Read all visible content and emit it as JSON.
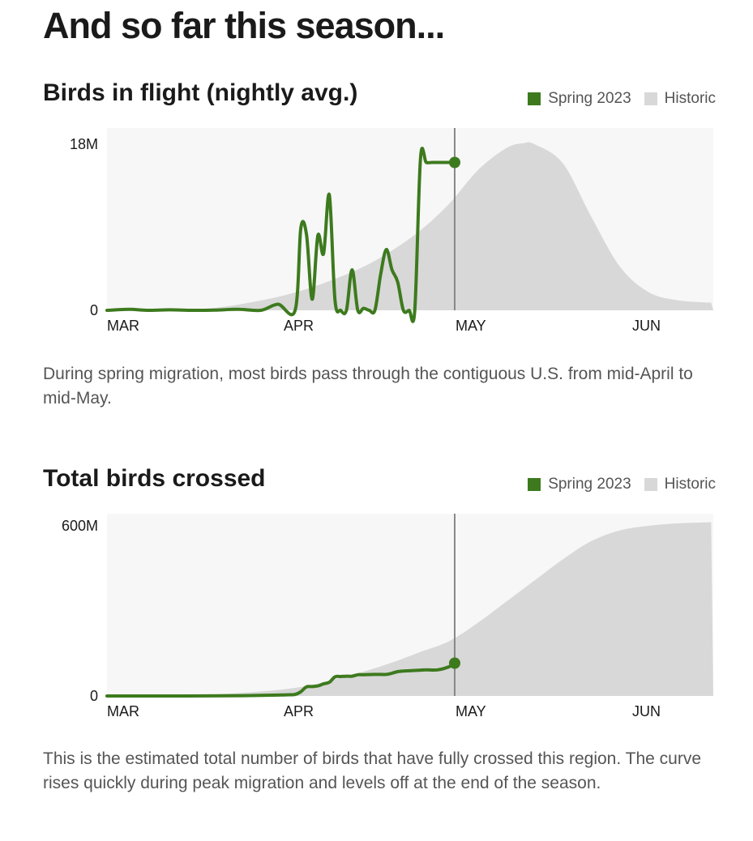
{
  "heading": "And so far this season...",
  "colors": {
    "spring": "#3d7a1e",
    "historic": "#d8d8d8",
    "plot_bg": "#f7f7f7",
    "marker": "#888888"
  },
  "charts": [
    {
      "title": "Birds in flight (nightly avg.)",
      "legend": [
        "Spring 2023",
        "Historic"
      ],
      "caption": "During spring migration, most birds pass through the contiguous U.S. from mid-April to mid-May."
    },
    {
      "title": "Total birds crossed",
      "legend": [
        "Spring 2023",
        "Historic"
      ],
      "caption": "This is the estimated total number of birds that have fully crossed this region. The curve rises quickly during peak migration and levels off at the end of the season."
    }
  ],
  "chart_data": [
    {
      "type": "line",
      "title": "Birds in flight (nightly avg.)",
      "y_unit": "birds",
      "ylim": [
        0,
        18000000
      ],
      "y_ticks": [
        "18M",
        "0"
      ],
      "x_ticks": [
        "MAR",
        "APR",
        "MAY",
        "JUN"
      ],
      "current_marker": "2023-05-01",
      "series": [
        {
          "name": "Historic",
          "type": "area",
          "x": [
            "2023-03-01",
            "2023-03-10",
            "2023-03-20",
            "2023-03-30",
            "2023-04-05",
            "2023-04-10",
            "2023-04-15",
            "2023-04-20",
            "2023-04-25",
            "2023-04-30",
            "2023-05-05",
            "2023-05-10",
            "2023-05-13",
            "2023-05-15",
            "2023-05-20",
            "2023-05-25",
            "2023-05-30",
            "2023-06-04",
            "2023-06-09",
            "2023-06-15"
          ],
          "y": [
            0,
            50000,
            250000,
            1200000,
            2100000,
            3100000,
            4300000,
            5900000,
            7900000,
            10500000,
            13800000,
            16000000,
            16500000,
            16400000,
            14500000,
            9200000,
            4300000,
            1800000,
            1000000,
            750000
          ]
        },
        {
          "name": "Spring 2023",
          "type": "line",
          "x": [
            "2023-03-01",
            "2023-03-05",
            "2023-03-08",
            "2023-03-12",
            "2023-03-16",
            "2023-03-20",
            "2023-03-24",
            "2023-03-28",
            "2023-03-31",
            "2023-04-03",
            "2023-04-04",
            "2023-04-05",
            "2023-04-06",
            "2023-04-07",
            "2023-04-08",
            "2023-04-09",
            "2023-04-10",
            "2023-04-11",
            "2023-04-12",
            "2023-04-13",
            "2023-04-14",
            "2023-04-15",
            "2023-04-16",
            "2023-04-17",
            "2023-04-18",
            "2023-04-19",
            "2023-04-20",
            "2023-04-21",
            "2023-04-22",
            "2023-04-23",
            "2023-04-24",
            "2023-04-25",
            "2023-04-26",
            "2023-04-27",
            "2023-04-28",
            "2023-04-29",
            "2023-04-30",
            "2023-05-01"
          ],
          "y": [
            0,
            100000,
            0,
            50000,
            0,
            20000,
            100000,
            0,
            600000,
            0,
            8100000,
            7500000,
            1100000,
            7400000,
            5600000,
            11400000,
            1000000,
            0,
            0,
            4000000,
            0,
            200000,
            0,
            0,
            3500000,
            6000000,
            4000000,
            2800000,
            0,
            0,
            0,
            15000000,
            14600000,
            14600000,
            14600000,
            14600000,
            14600000,
            14600000
          ]
        }
      ]
    },
    {
      "type": "line",
      "title": "Total birds crossed",
      "y_unit": "birds",
      "ylim": [
        0,
        600000000
      ],
      "y_ticks": [
        "600M",
        "0"
      ],
      "x_ticks": [
        "MAR",
        "APR",
        "MAY",
        "JUN"
      ],
      "current_marker": "2023-05-01",
      "series": [
        {
          "name": "Historic",
          "type": "area",
          "x": [
            "2023-03-01",
            "2023-03-10",
            "2023-03-20",
            "2023-03-30",
            "2023-04-05",
            "2023-04-10",
            "2023-04-15",
            "2023-04-20",
            "2023-04-25",
            "2023-04-30",
            "2023-05-05",
            "2023-05-10",
            "2023-05-15",
            "2023-05-20",
            "2023-05-25",
            "2023-05-30",
            "2023-06-04",
            "2023-06-09",
            "2023-06-15"
          ],
          "y": [
            0,
            1000000,
            5000000,
            18000000,
            33000000,
            55000000,
            80000000,
            110000000,
            145000000,
            180000000,
            240000000,
            310000000,
            380000000,
            450000000,
            510000000,
            545000000,
            560000000,
            568000000,
            572000000
          ]
        },
        {
          "name": "Spring 2023",
          "type": "line",
          "x": [
            "2023-03-01",
            "2023-03-15",
            "2023-03-25",
            "2023-03-31",
            "2023-04-01",
            "2023-04-02",
            "2023-04-03",
            "2023-04-04",
            "2023-04-05",
            "2023-04-06",
            "2023-04-07",
            "2023-04-08",
            "2023-04-09",
            "2023-04-10",
            "2023-04-11",
            "2023-04-12",
            "2023-04-13",
            "2023-04-14",
            "2023-04-15",
            "2023-04-17",
            "2023-04-19",
            "2023-04-20",
            "2023-04-21",
            "2023-04-22",
            "2023-04-25",
            "2023-04-26",
            "2023-04-28",
            "2023-04-30",
            "2023-05-01"
          ],
          "y": [
            0,
            0,
            1000000,
            3000000,
            3500000,
            4000000,
            5000000,
            14000000,
            30000000,
            31000000,
            33000000,
            40000000,
            45000000,
            63000000,
            64000000,
            65000000,
            65000000,
            70000000,
            70000000,
            71000000,
            71000000,
            75000000,
            80000000,
            82000000,
            85000000,
            86000000,
            86000000,
            96000000,
            108000000
          ]
        }
      ]
    }
  ]
}
